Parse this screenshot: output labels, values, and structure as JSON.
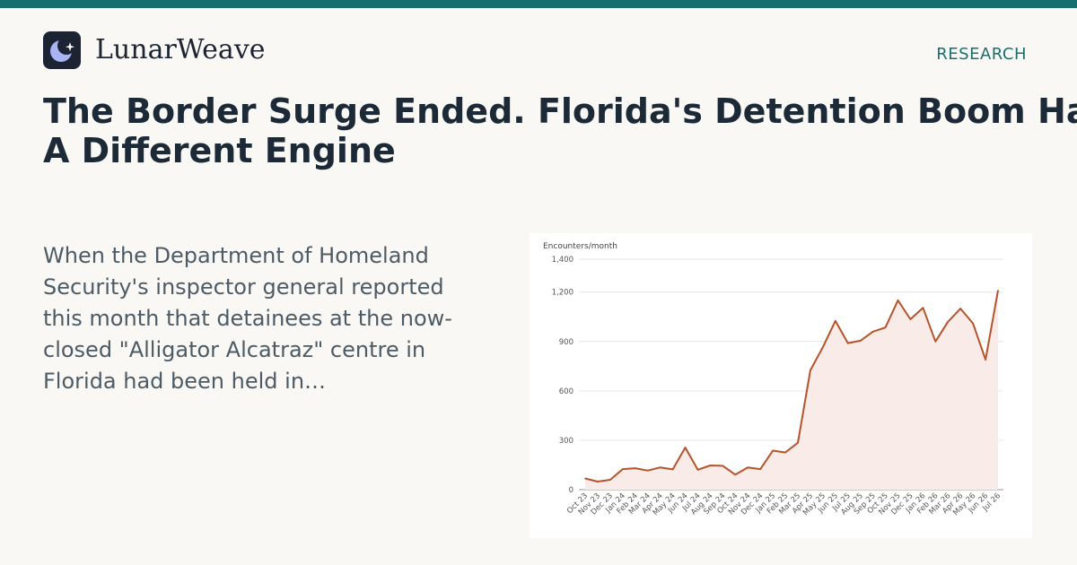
{
  "brand": {
    "name": "LunarWeave",
    "logo_icon": "crescent-moon-star-icon"
  },
  "section_label": "RESEARCH",
  "headline": {
    "line1": "The Border Surge Ended. Florida's Detention Boom Has",
    "line2": "A Different Engine"
  },
  "summary": "When the Department of Homeland Security's inspector general reported this month that detainees at the now-closed \"Alligator Alcatraz\" centre in Florida had been held in…",
  "colors": {
    "accent": "#18706e",
    "line": "#b5532a",
    "fill": "#f9ece8",
    "logo_bg": "#1c2433",
    "moon": "#aab4f5"
  },
  "chart_data": {
    "type": "area",
    "ylabel": "Encounters/month",
    "ylim": [
      0,
      1400
    ],
    "yticks": [
      0,
      300,
      600,
      900,
      1200,
      1400
    ],
    "ytick_labels": [
      "0",
      "300",
      "600",
      "900",
      "1,200",
      "1,400"
    ],
    "grid": true,
    "categories": [
      "Oct 23",
      "Nov 23",
      "Dec 23",
      "Jan 24",
      "Feb 24",
      "Mar 24",
      "Apr 24",
      "May 24",
      "Jun 24",
      "Jul 24",
      "Aug 24",
      "Sep 24",
      "Oct 24",
      "Nov 24",
      "Dec 24",
      "Jan 25",
      "Feb 25",
      "Mar 25",
      "Apr 25",
      "May 25",
      "Jun 25",
      "Jul 25",
      "Aug 25",
      "Sep 25",
      "Oct 25",
      "Nov 25",
      "Dec 25",
      "Jan 26",
      "Feb 26",
      "Mar 26",
      "Apr 26",
      "May 26",
      "Jun 26",
      "Jul 26"
    ],
    "values": [
      68,
      49,
      60,
      125,
      130,
      116,
      135,
      123,
      256,
      121,
      147,
      145,
      91,
      135,
      125,
      237,
      226,
      285,
      725,
      865,
      1025,
      890,
      905,
      960,
      985,
      1150,
      1035,
      1105,
      900,
      1020,
      1100,
      1010,
      790,
      1210
    ]
  }
}
